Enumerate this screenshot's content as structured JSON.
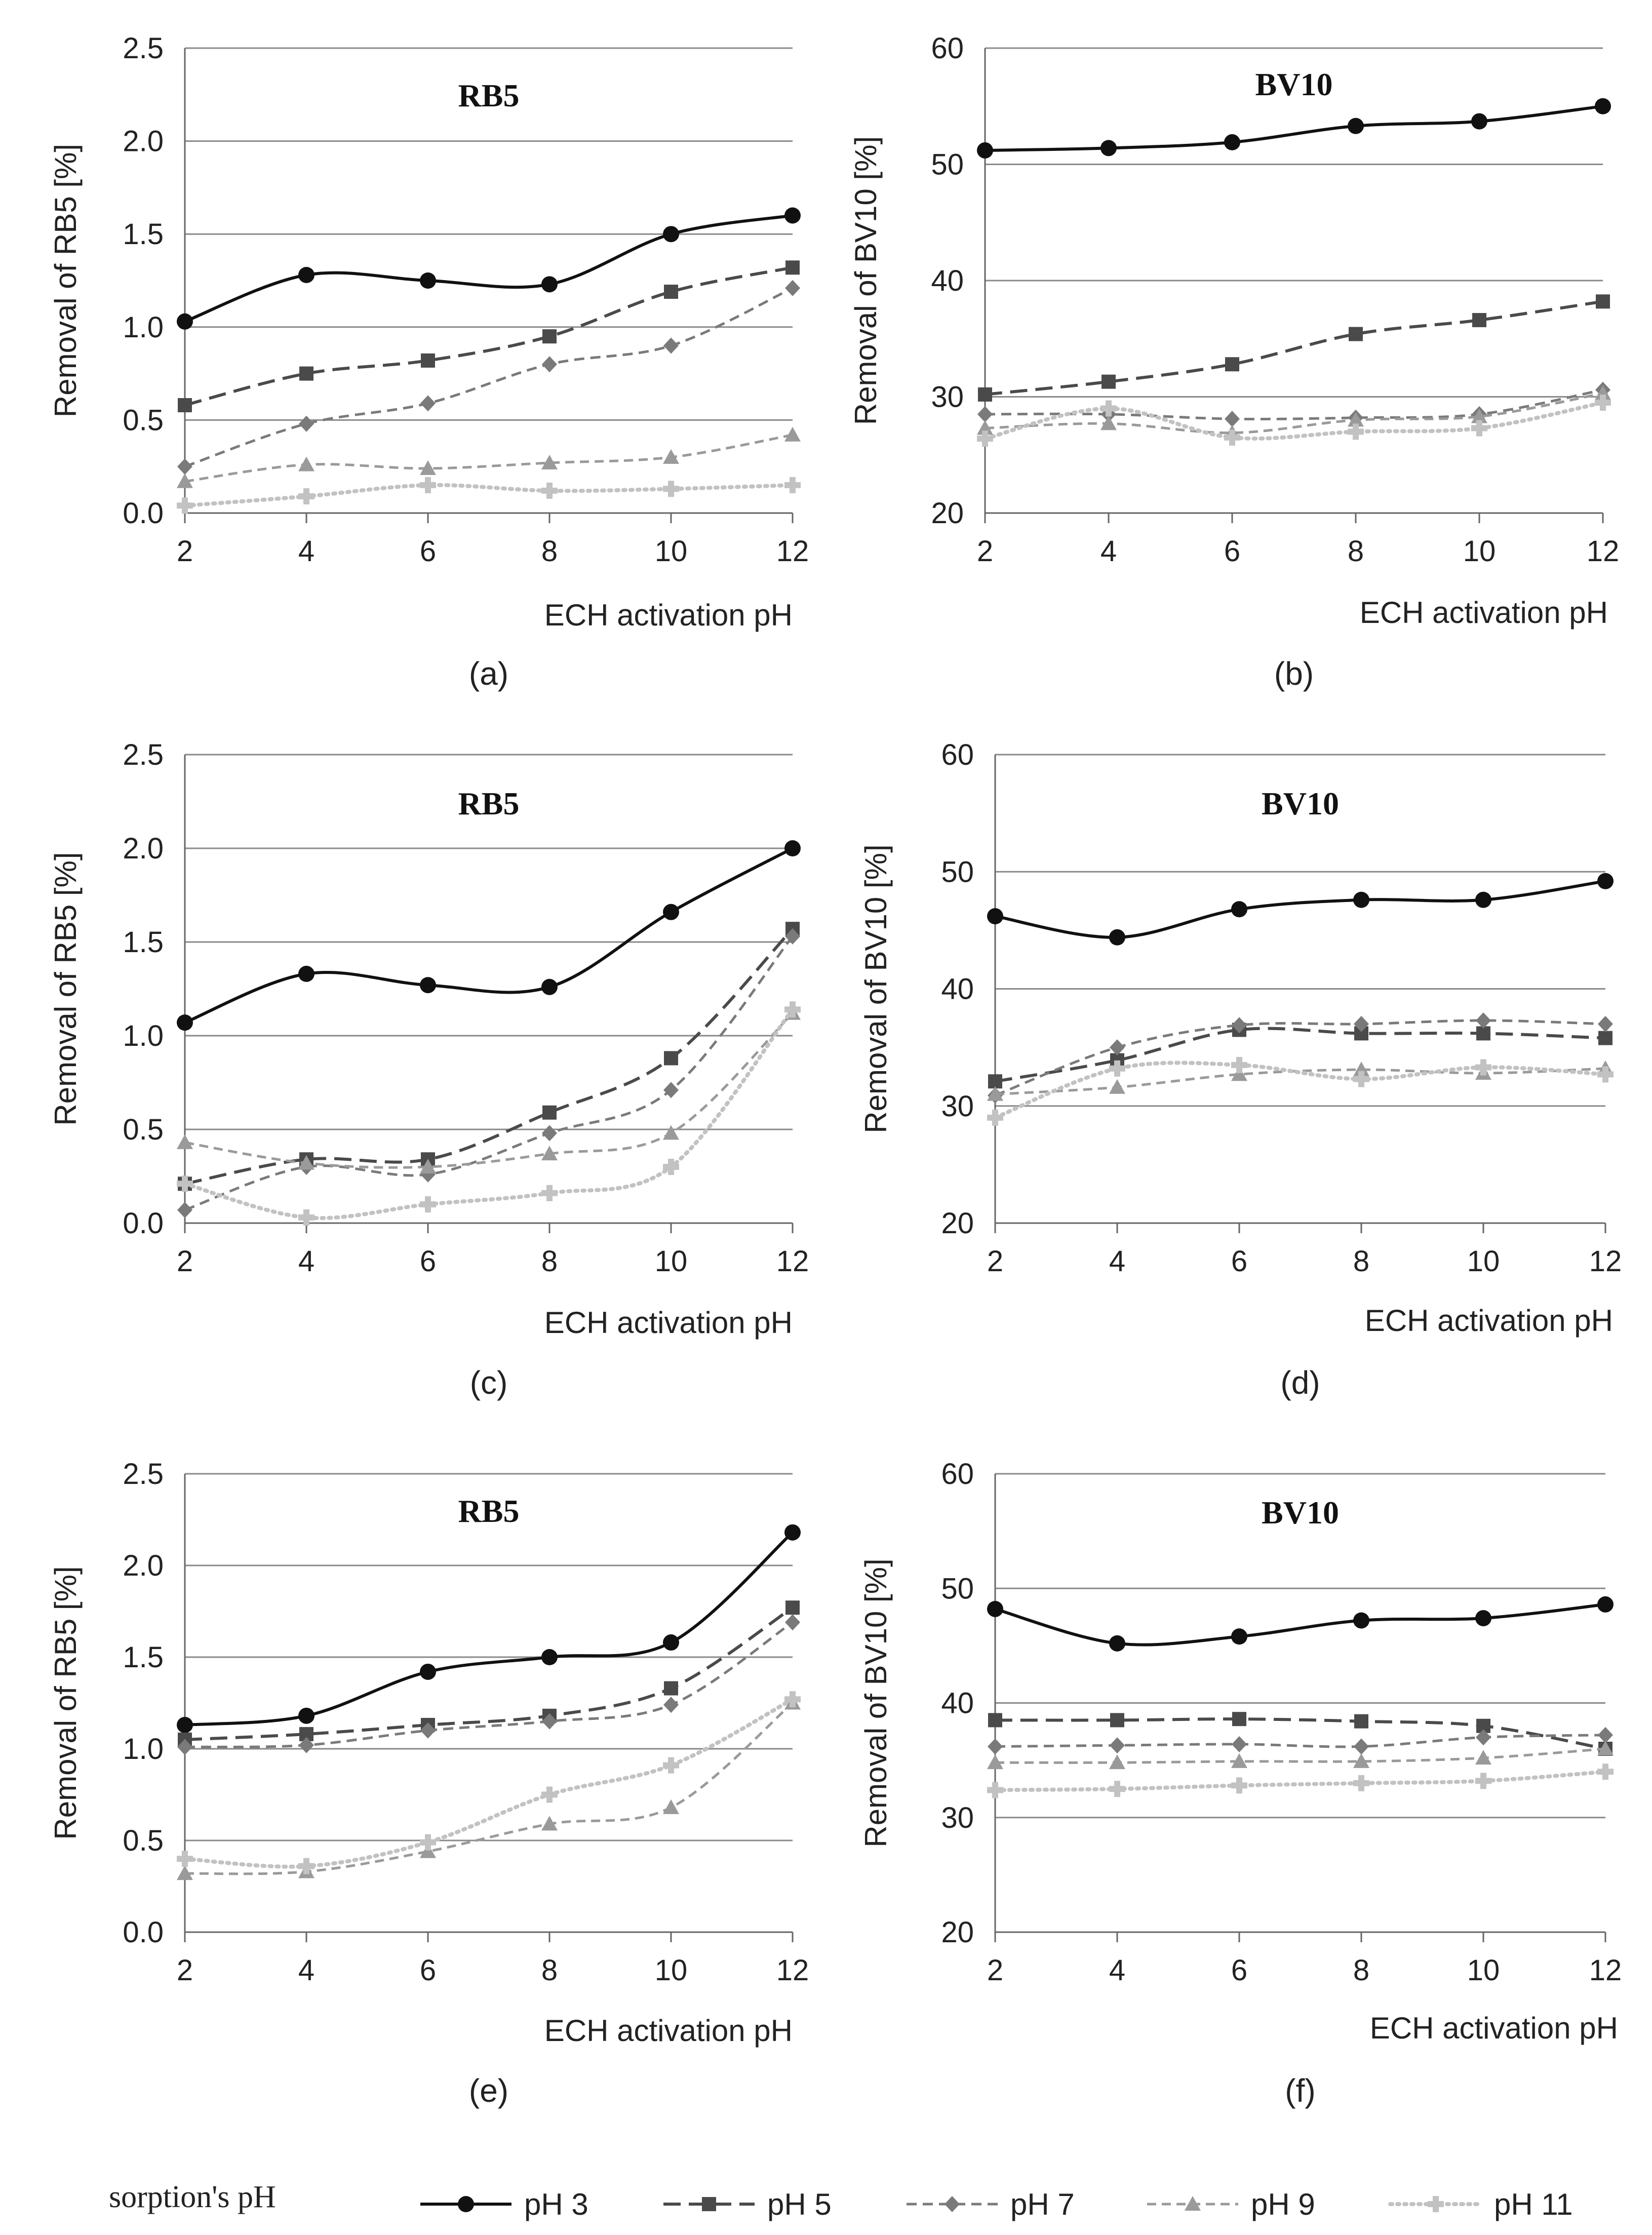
{
  "legend": {
    "title": "sorption's pH",
    "position": "bottom",
    "entries": [
      "pH 3",
      "pH 5",
      "pH 7",
      "pH 9",
      "pH 11"
    ]
  },
  "chart_data": [
    {
      "type": "line",
      "panel": "(a)",
      "title": "RB5",
      "xlabel": "ECH activation pH",
      "ylabel": "Removal of RB5  [%]",
      "ylim": [
        0,
        2.5
      ],
      "yticks": [
        "0.0",
        "0.5",
        "1.0",
        "1.5",
        "2.0",
        "2.5"
      ],
      "x": [
        2,
        4,
        6,
        8,
        10,
        12
      ],
      "xticks": [
        "2",
        "4",
        "6",
        "8",
        "10",
        "12"
      ],
      "series": [
        {
          "name": "pH 3",
          "values": [
            1.03,
            1.28,
            1.25,
            1.23,
            1.5,
            1.6
          ]
        },
        {
          "name": "pH 5",
          "values": [
            0.58,
            0.75,
            0.82,
            0.95,
            1.19,
            1.32
          ]
        },
        {
          "name": "pH 7",
          "values": [
            0.25,
            0.48,
            0.59,
            0.8,
            0.9,
            1.21
          ]
        },
        {
          "name": "pH 9",
          "values": [
            0.17,
            0.26,
            0.24,
            0.27,
            0.3,
            0.42
          ]
        },
        {
          "name": "pH 11",
          "values": [
            0.04,
            0.09,
            0.15,
            0.12,
            0.13,
            0.15
          ]
        }
      ]
    },
    {
      "type": "line",
      "panel": "(b)",
      "title": "BV10",
      "xlabel": "ECH activation pH",
      "ylabel": "Removal of BV10  [%]",
      "ylim": [
        20,
        60
      ],
      "yticks": [
        "20",
        "30",
        "40",
        "50",
        "60"
      ],
      "x": [
        2,
        4,
        6,
        8,
        10,
        12
      ],
      "xticks": [
        "2",
        "4",
        "6",
        "8",
        "10",
        "12"
      ],
      "series": [
        {
          "name": "pH 3",
          "values": [
            51.2,
            51.4,
            51.9,
            53.3,
            53.7,
            55.0
          ]
        },
        {
          "name": "pH 5",
          "values": [
            30.2,
            31.3,
            32.8,
            35.4,
            36.6,
            38.2
          ]
        },
        {
          "name": "pH 7",
          "values": [
            28.5,
            28.5,
            28.1,
            28.2,
            28.5,
            30.6
          ]
        },
        {
          "name": "pH 9",
          "values": [
            27.3,
            27.7,
            26.9,
            28.0,
            28.3,
            30.3
          ]
        },
        {
          "name": "pH 11",
          "values": [
            26.4,
            29.0,
            26.5,
            27.0,
            27.3,
            29.5
          ]
        }
      ]
    },
    {
      "type": "line",
      "panel": "(c)",
      "title": "RB5",
      "xlabel": "ECH activation pH",
      "ylabel": "Removal of RB5  [%]",
      "ylim": [
        0,
        2.5
      ],
      "yticks": [
        "0.0",
        "0.5",
        "1.0",
        "1.5",
        "2.0",
        "2.5"
      ],
      "x": [
        2,
        4,
        6,
        8,
        10,
        12
      ],
      "xticks": [
        "2",
        "4",
        "6",
        "8",
        "10",
        "12"
      ],
      "series": [
        {
          "name": "pH 3",
          "values": [
            1.07,
            1.33,
            1.27,
            1.26,
            1.66,
            2.0
          ]
        },
        {
          "name": "pH 5",
          "values": [
            0.21,
            0.34,
            0.34,
            0.59,
            0.88,
            1.57
          ]
        },
        {
          "name": "pH 7",
          "values": [
            0.07,
            0.3,
            0.26,
            0.48,
            0.71,
            1.53
          ]
        },
        {
          "name": "pH 9",
          "values": [
            0.43,
            0.32,
            0.3,
            0.37,
            0.48,
            1.12
          ]
        },
        {
          "name": "pH 11",
          "values": [
            0.21,
            0.03,
            0.1,
            0.16,
            0.3,
            1.14
          ]
        }
      ]
    },
    {
      "type": "line",
      "panel": "(d)",
      "title": "BV10",
      "xlabel": "ECH activation pH",
      "ylabel": "Removal of BV10  [%]",
      "ylim": [
        20,
        60
      ],
      "yticks": [
        "20",
        "30",
        "40",
        "50",
        "60"
      ],
      "x": [
        2,
        4,
        6,
        8,
        10,
        12
      ],
      "xticks": [
        "2",
        "4",
        "6",
        "8",
        "10",
        "12"
      ],
      "series": [
        {
          "name": "pH 3",
          "values": [
            46.2,
            44.4,
            46.8,
            47.6,
            47.6,
            49.2
          ]
        },
        {
          "name": "pH 5",
          "values": [
            32.1,
            33.9,
            36.5,
            36.2,
            36.2,
            35.8
          ]
        },
        {
          "name": "pH 7",
          "values": [
            30.9,
            35.0,
            36.9,
            37.0,
            37.3,
            37.0
          ]
        },
        {
          "name": "pH 9",
          "values": [
            31.0,
            31.6,
            32.7,
            33.1,
            32.8,
            33.2
          ]
        },
        {
          "name": "pH 11",
          "values": [
            29.0,
            33.2,
            33.5,
            32.3,
            33.3,
            32.7
          ]
        }
      ]
    },
    {
      "type": "line",
      "panel": "(e)",
      "title": "RB5",
      "xlabel": "ECH activation pH",
      "ylabel": "Removal of RB5  [%]",
      "ylim": [
        0,
        2.5
      ],
      "yticks": [
        "0.0",
        "0.5",
        "1.0",
        "1.5",
        "2.0",
        "2.5"
      ],
      "x": [
        2,
        4,
        6,
        8,
        10,
        12
      ],
      "xticks": [
        "2",
        "4",
        "6",
        "8",
        "10",
        "12"
      ],
      "series": [
        {
          "name": "pH 3",
          "values": [
            1.13,
            1.18,
            1.42,
            1.5,
            1.58,
            2.18
          ]
        },
        {
          "name": "pH 5",
          "values": [
            1.05,
            1.08,
            1.13,
            1.18,
            1.33,
            1.77
          ]
        },
        {
          "name": "pH 7",
          "values": [
            1.01,
            1.02,
            1.1,
            1.15,
            1.24,
            1.69
          ]
        },
        {
          "name": "pH 9",
          "values": [
            0.32,
            0.33,
            0.44,
            0.59,
            0.68,
            1.25
          ]
        },
        {
          "name": "pH 11",
          "values": [
            0.4,
            0.36,
            0.49,
            0.75,
            0.91,
            1.27
          ]
        }
      ]
    },
    {
      "type": "line",
      "panel": "(f)",
      "title": "BV10",
      "xlabel": "ECH activation pH",
      "ylabel": "Removal of BV10  [%]",
      "ylim": [
        20,
        60
      ],
      "yticks": [
        "20",
        "30",
        "40",
        "50",
        "60"
      ],
      "x": [
        2,
        4,
        6,
        8,
        10,
        12
      ],
      "xticks": [
        "2",
        "4",
        "6",
        "8",
        "10",
        "12"
      ],
      "series": [
        {
          "name": "pH 3",
          "values": [
            48.2,
            45.2,
            45.8,
            47.2,
            47.4,
            48.6
          ]
        },
        {
          "name": "pH 5",
          "values": [
            38.5,
            38.5,
            38.6,
            38.4,
            38.0,
            36.0
          ]
        },
        {
          "name": "pH 7",
          "values": [
            36.2,
            36.3,
            36.4,
            36.2,
            37.0,
            37.2
          ]
        },
        {
          "name": "pH 9",
          "values": [
            34.8,
            34.8,
            34.9,
            34.9,
            35.2,
            36.0
          ]
        },
        {
          "name": "pH 11",
          "values": [
            32.4,
            32.5,
            32.8,
            33.0,
            33.2,
            34.0
          ]
        }
      ]
    }
  ]
}
